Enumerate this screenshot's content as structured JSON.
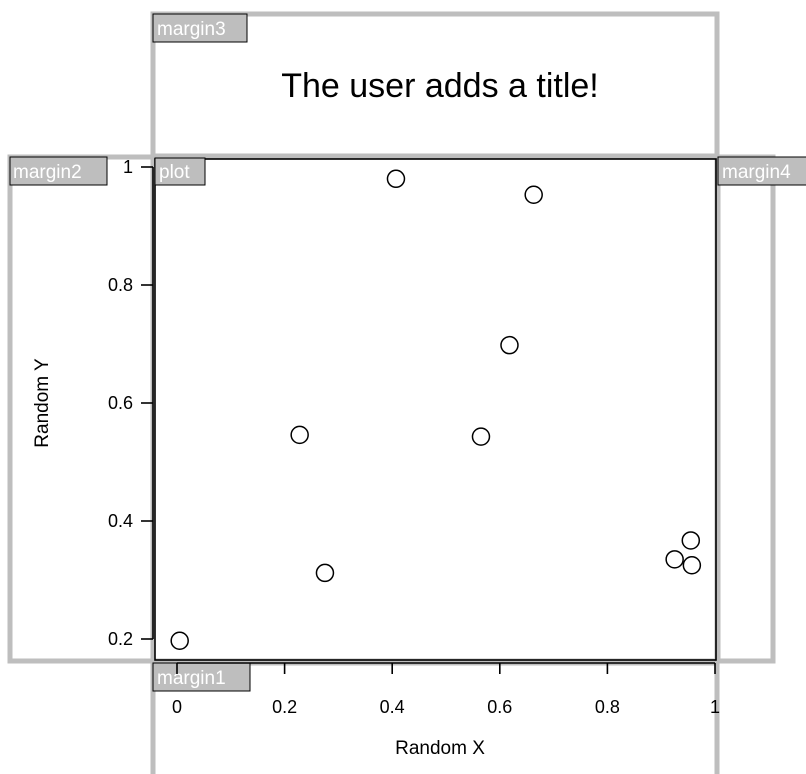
{
  "chart_data": {
    "type": "scatter",
    "title": "The user adds a title!",
    "xlabel": "Random X",
    "ylabel": "Random Y",
    "xlim": [
      0,
      1
    ],
    "ylim": [
      0.2,
      1
    ],
    "x_ticks": [
      {
        "value": 0,
        "label": "0"
      },
      {
        "value": 0.2,
        "label": "0.2"
      },
      {
        "value": 0.4,
        "label": "0.4"
      },
      {
        "value": 0.6,
        "label": "0.6"
      },
      {
        "value": 0.8,
        "label": "0.8"
      },
      {
        "value": 1,
        "label": "1"
      }
    ],
    "y_ticks": [
      {
        "value": 0.2,
        "label": "0.2"
      },
      {
        "value": 0.4,
        "label": "0.4"
      },
      {
        "value": 0.6,
        "label": "0.6"
      },
      {
        "value": 0.8,
        "label": "0.8"
      },
      {
        "value": 1,
        "label": "1"
      }
    ],
    "points": [
      {
        "x": 0.005,
        "y": 0.197
      },
      {
        "x": 0.228,
        "y": 0.546
      },
      {
        "x": 0.275,
        "y": 0.312
      },
      {
        "x": 0.407,
        "y": 0.98
      },
      {
        "x": 0.565,
        "y": 0.543
      },
      {
        "x": 0.618,
        "y": 0.698
      },
      {
        "x": 0.663,
        "y": 0.953
      },
      {
        "x": 0.925,
        "y": 0.335
      },
      {
        "x": 0.955,
        "y": 0.367
      },
      {
        "x": 0.957,
        "y": 0.325
      }
    ],
    "grid": false,
    "legend": "none"
  },
  "region_labels": {
    "margin1": "margin1",
    "margin2": "margin2",
    "margin3": "margin3",
    "margin4": "margin4",
    "plot": "plot"
  },
  "colors": {
    "region_border": "#bebebe",
    "label_background": "#bebebe",
    "label_text": "#ffffff",
    "axis": "#000000",
    "plot_border": "#000000"
  }
}
